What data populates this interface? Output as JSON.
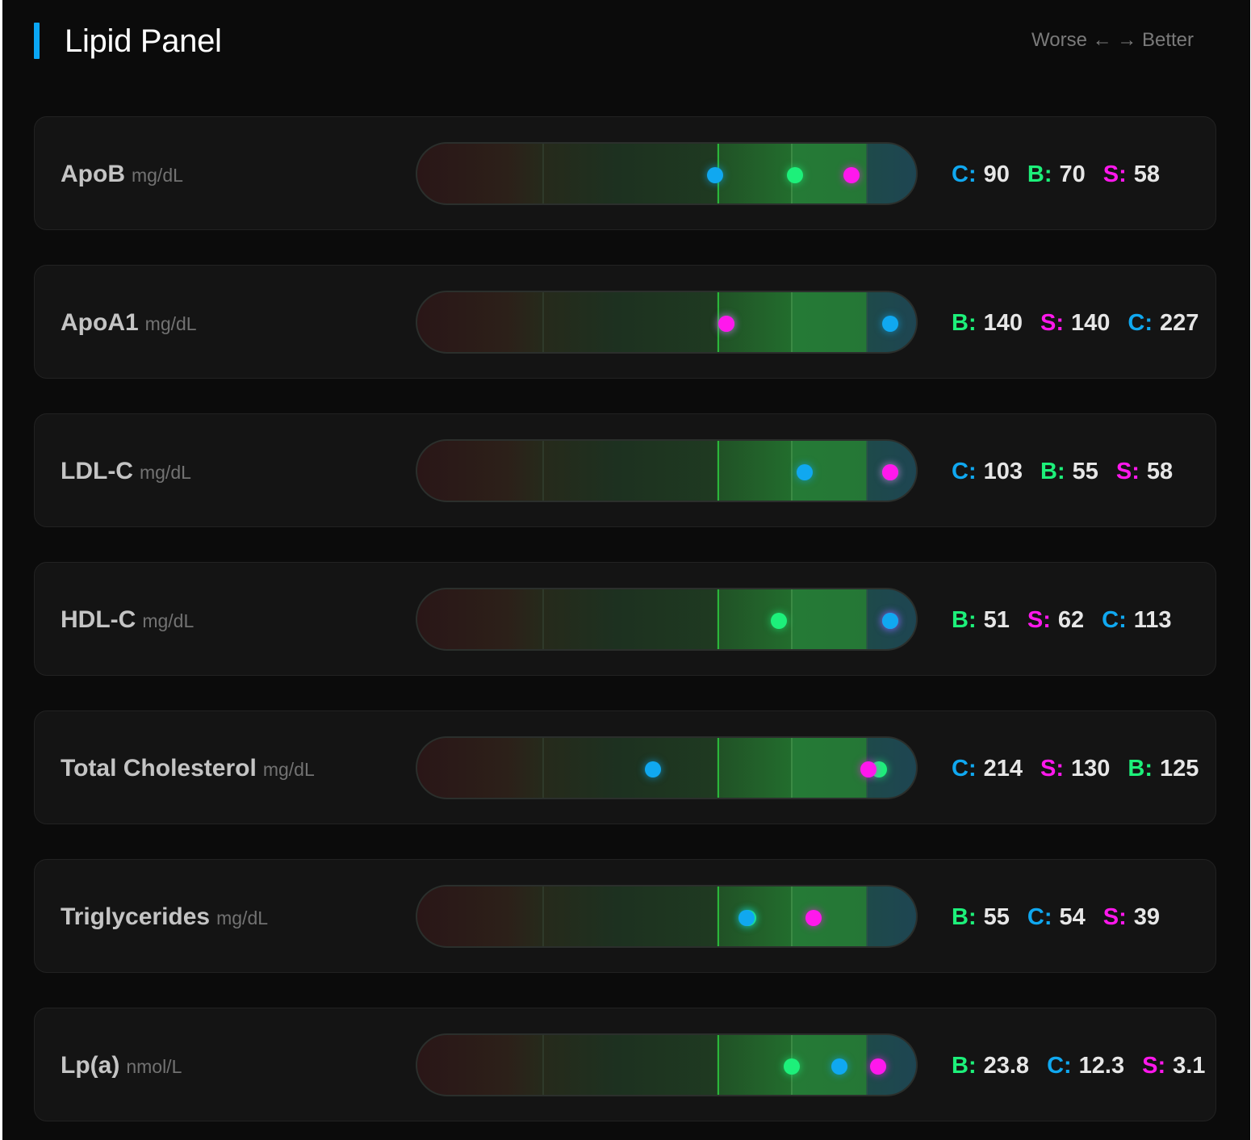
{
  "title": "Lipid Panel",
  "legend": "Worse ← → Better",
  "colors": {
    "c": "#10a8f0",
    "b": "#1df07a",
    "s": "#ff18ec",
    "accent": "#0aa6f5"
  },
  "rows": [
    {
      "name": "ApoB",
      "unit": "mg/dL",
      "values": [
        {
          "key": "C:",
          "val": "90",
          "series": "c"
        },
        {
          "key": "B:",
          "val": "70",
          "series": "b"
        },
        {
          "key": "S:",
          "val": "58",
          "series": "s"
        }
      ],
      "markers": [
        {
          "series": "c",
          "position": 0.597
        },
        {
          "series": "b",
          "position": 0.757
        },
        {
          "series": "s",
          "position": 0.87
        }
      ]
    },
    {
      "name": "ApoA1",
      "unit": "mg/dL",
      "values": [
        {
          "key": "B:",
          "val": "140",
          "series": "b"
        },
        {
          "key": "S:",
          "val": "140",
          "series": "s"
        },
        {
          "key": "C:",
          "val": "227",
          "series": "c"
        }
      ],
      "markers": [
        {
          "series": "b",
          "position": 0.619
        },
        {
          "series": "s",
          "position": 0.619
        },
        {
          "series": "c",
          "position": 0.949
        }
      ]
    },
    {
      "name": "LDL-C",
      "unit": "mg/dL",
      "values": [
        {
          "key": "C:",
          "val": "103",
          "series": "c"
        },
        {
          "key": "B:",
          "val": "55",
          "series": "b"
        },
        {
          "key": "S:",
          "val": "58",
          "series": "s"
        }
      ],
      "markers": [
        {
          "series": "c",
          "position": 0.776
        },
        {
          "series": "b",
          "position": 0.949
        },
        {
          "series": "s",
          "position": 0.949
        }
      ]
    },
    {
      "name": "HDL-C",
      "unit": "mg/dL",
      "values": [
        {
          "key": "B:",
          "val": "51",
          "series": "b"
        },
        {
          "key": "S:",
          "val": "62",
          "series": "s"
        },
        {
          "key": "C:",
          "val": "113",
          "series": "c"
        }
      ],
      "markers": [
        {
          "series": "b",
          "position": 0.725
        },
        {
          "series": "s",
          "position": 0.949
        },
        {
          "series": "c",
          "position": 0.949
        }
      ]
    },
    {
      "name": "Total Cholesterol",
      "unit": "mg/dL",
      "values": [
        {
          "key": "C:",
          "val": "214",
          "series": "c"
        },
        {
          "key": "S:",
          "val": "130",
          "series": "s"
        },
        {
          "key": "B:",
          "val": "125",
          "series": "b"
        }
      ],
      "markers": [
        {
          "series": "c",
          "position": 0.473
        },
        {
          "series": "b",
          "position": 0.926
        },
        {
          "series": "s",
          "position": 0.904
        }
      ]
    },
    {
      "name": "Triglycerides",
      "unit": "mg/dL",
      "values": [
        {
          "key": "B:",
          "val": "55",
          "series": "b"
        },
        {
          "key": "C:",
          "val": "54",
          "series": "c"
        },
        {
          "key": "S:",
          "val": "39",
          "series": "s"
        }
      ],
      "markers": [
        {
          "series": "b",
          "position": 0.663
        },
        {
          "series": "c",
          "position": 0.661
        },
        {
          "series": "s",
          "position": 0.795
        }
      ]
    },
    {
      "name": "Lp(a)",
      "unit": "nmol/L",
      "values": [
        {
          "key": "B:",
          "val": "23.8",
          "series": "b"
        },
        {
          "key": "C:",
          "val": "12.3",
          "series": "c"
        },
        {
          "key": "S:",
          "val": "3.1",
          "series": "s"
        }
      ],
      "markers": [
        {
          "series": "b",
          "position": 0.751
        },
        {
          "series": "c",
          "position": 0.846
        },
        {
          "series": "s",
          "position": 0.924
        }
      ]
    }
  ]
}
